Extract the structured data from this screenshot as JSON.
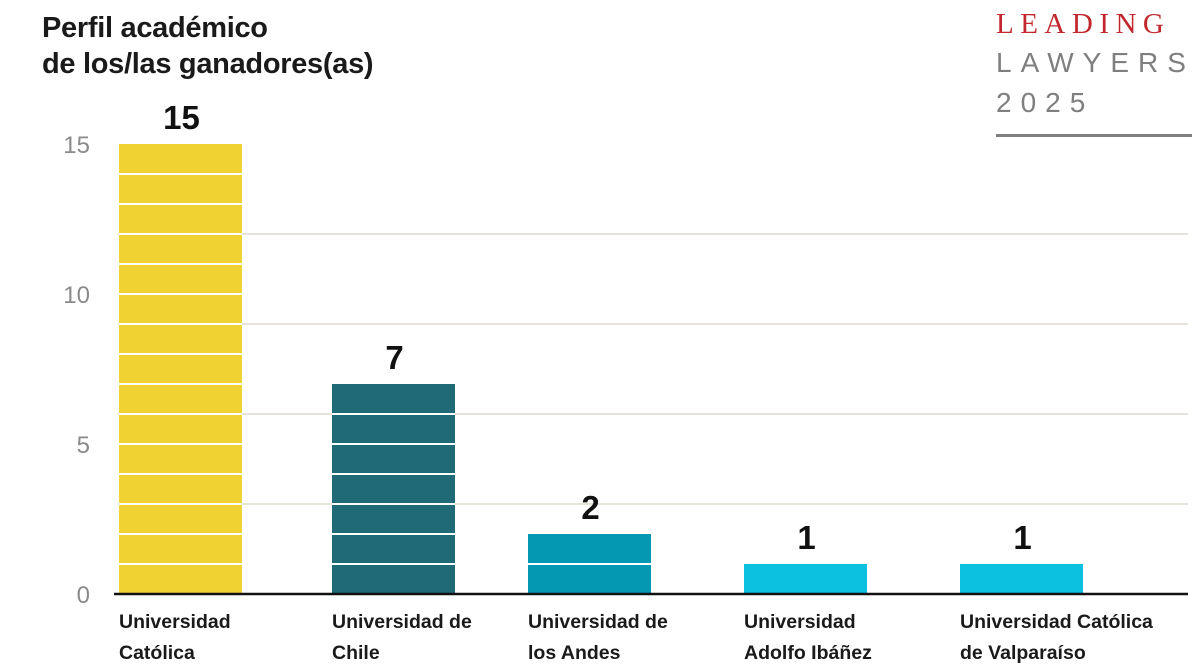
{
  "title_lines": [
    "Perfil académico",
    "de los/las ganadores(as)"
  ],
  "logo": {
    "line1": "LEADING",
    "line2": "LAWYERS",
    "line3": "2025"
  },
  "colors": {
    "Universidad Católica": "#f0d232",
    "Universidad de Chile": "#1f6a76",
    "Universidad de los Andes": "#0598b2",
    "Universidad Adolfo Ibáñez": "#0cc1e0",
    "Universidad Católica de Valparaíso": "#0cc1e0",
    "accent": "#c1272d",
    "logo_gray": "#7f7f7f"
  },
  "chart_data": {
    "type": "bar",
    "title": "Perfil académico de los/las ganadores(as)",
    "xlabel": "",
    "ylabel": "",
    "ylim": [
      0,
      15
    ],
    "yticks": [
      0,
      5,
      10,
      15
    ],
    "grid": true,
    "categories": [
      [
        "Universidad",
        "Católica"
      ],
      [
        "Universidad de",
        "Chile"
      ],
      [
        "Universidad de",
        "los Andes"
      ],
      [
        "Universidad",
        "Adolfo Ibáñez"
      ],
      [
        "Universidad Católica",
        "de Valparaíso"
      ]
    ],
    "values": [
      15,
      7,
      2,
      1,
      1
    ],
    "data_labels": [
      "15",
      "7",
      "2",
      "1",
      "1"
    ]
  }
}
